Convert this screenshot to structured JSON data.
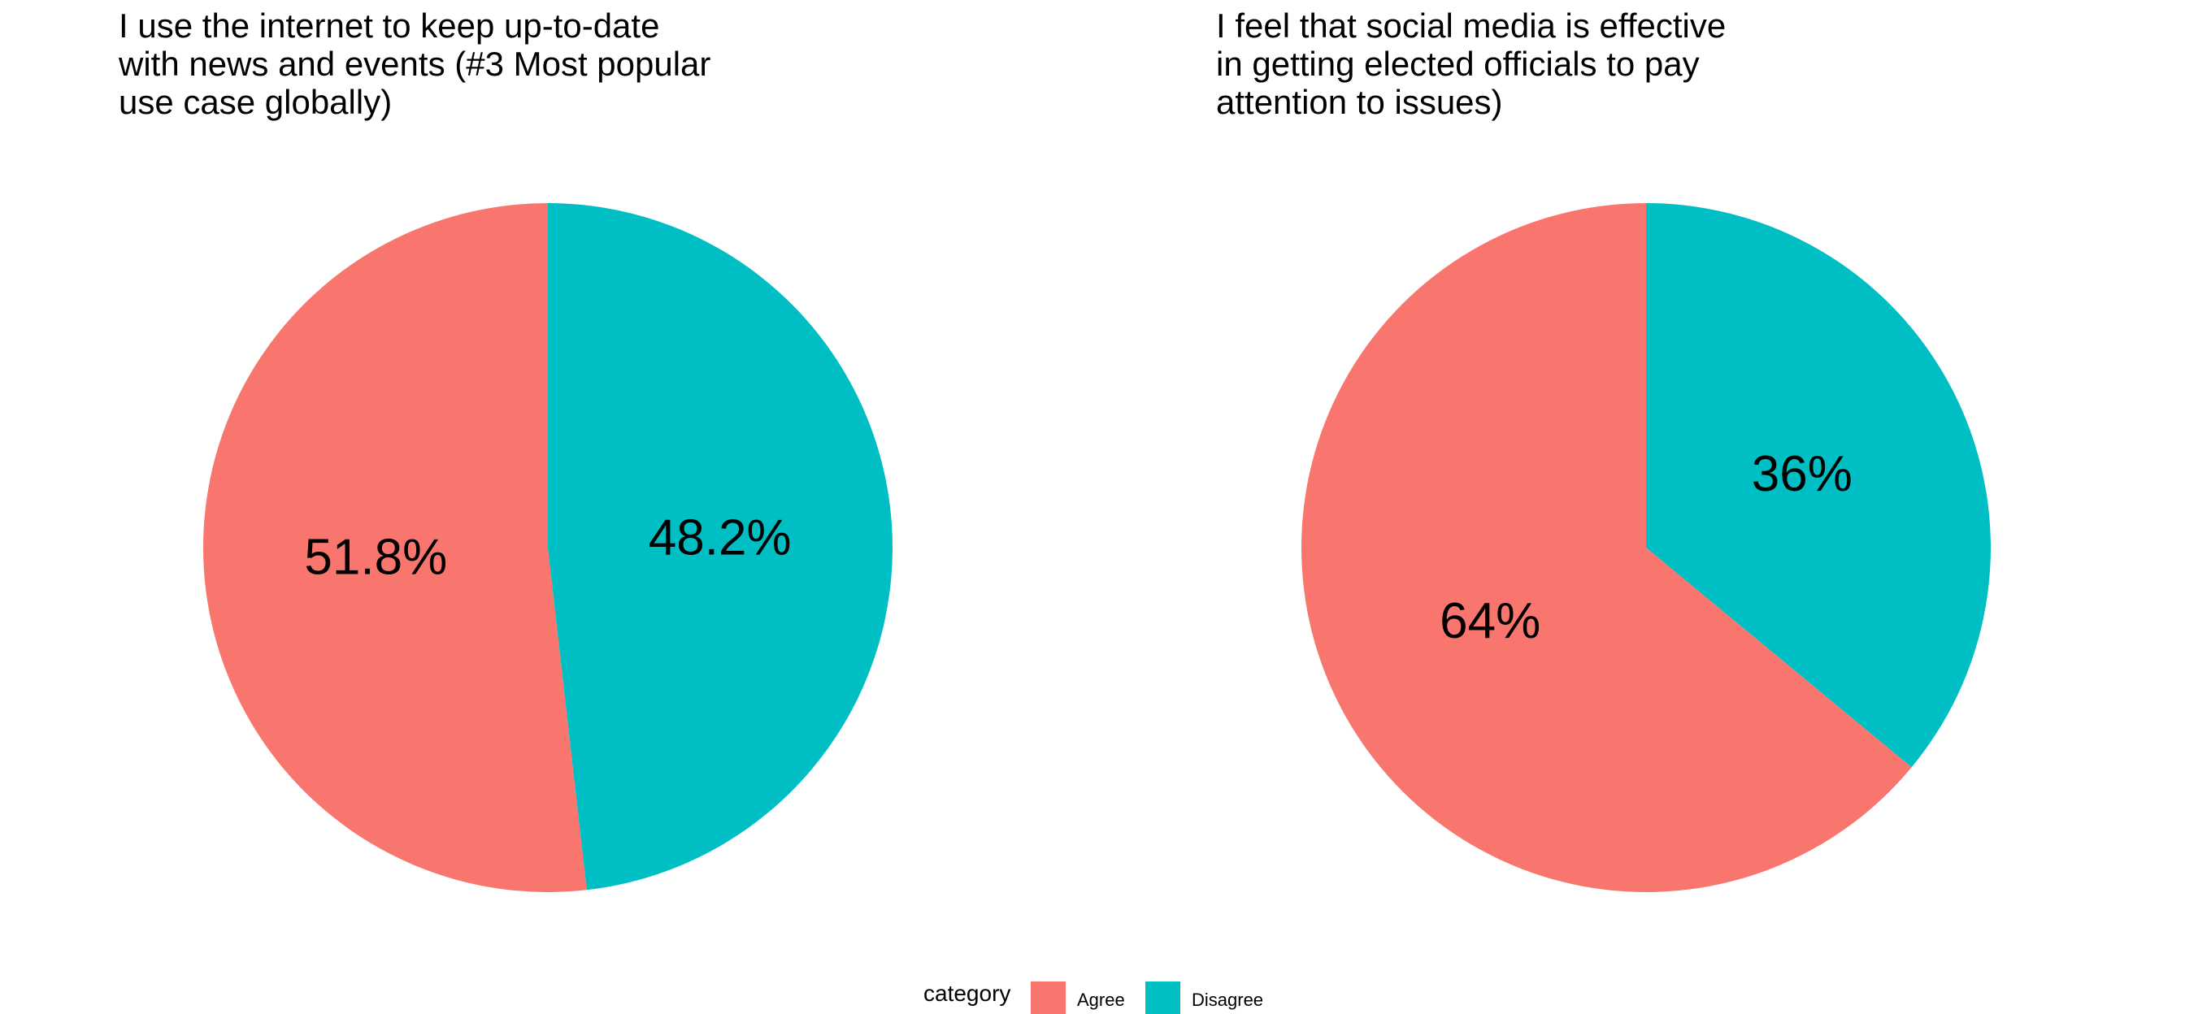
{
  "chart_data": [
    {
      "type": "pie",
      "title_lines": [
        "I use the internet to keep up-to-date",
        "with news and events (#3 Most popular",
        "use case globally)"
      ],
      "slices": [
        {
          "category": "Agree",
          "value": 51.8,
          "label": "51.8%"
        },
        {
          "category": "Disagree",
          "value": 48.2,
          "label": "48.2%"
        }
      ]
    },
    {
      "type": "pie",
      "title_lines": [
        "I feel that social media is effective",
        "in getting elected officials to pay",
        "attention to issues)"
      ],
      "slices": [
        {
          "category": "Agree",
          "value": 64,
          "label": "64%"
        },
        {
          "category": "Disagree",
          "value": 36,
          "label": "36%"
        }
      ]
    }
  ],
  "legend": {
    "title": "category",
    "position": "bottom",
    "items": [
      {
        "label": "Agree",
        "color": "#F8766D"
      },
      {
        "label": "Disagree",
        "color": "#00BFC4"
      }
    ]
  }
}
